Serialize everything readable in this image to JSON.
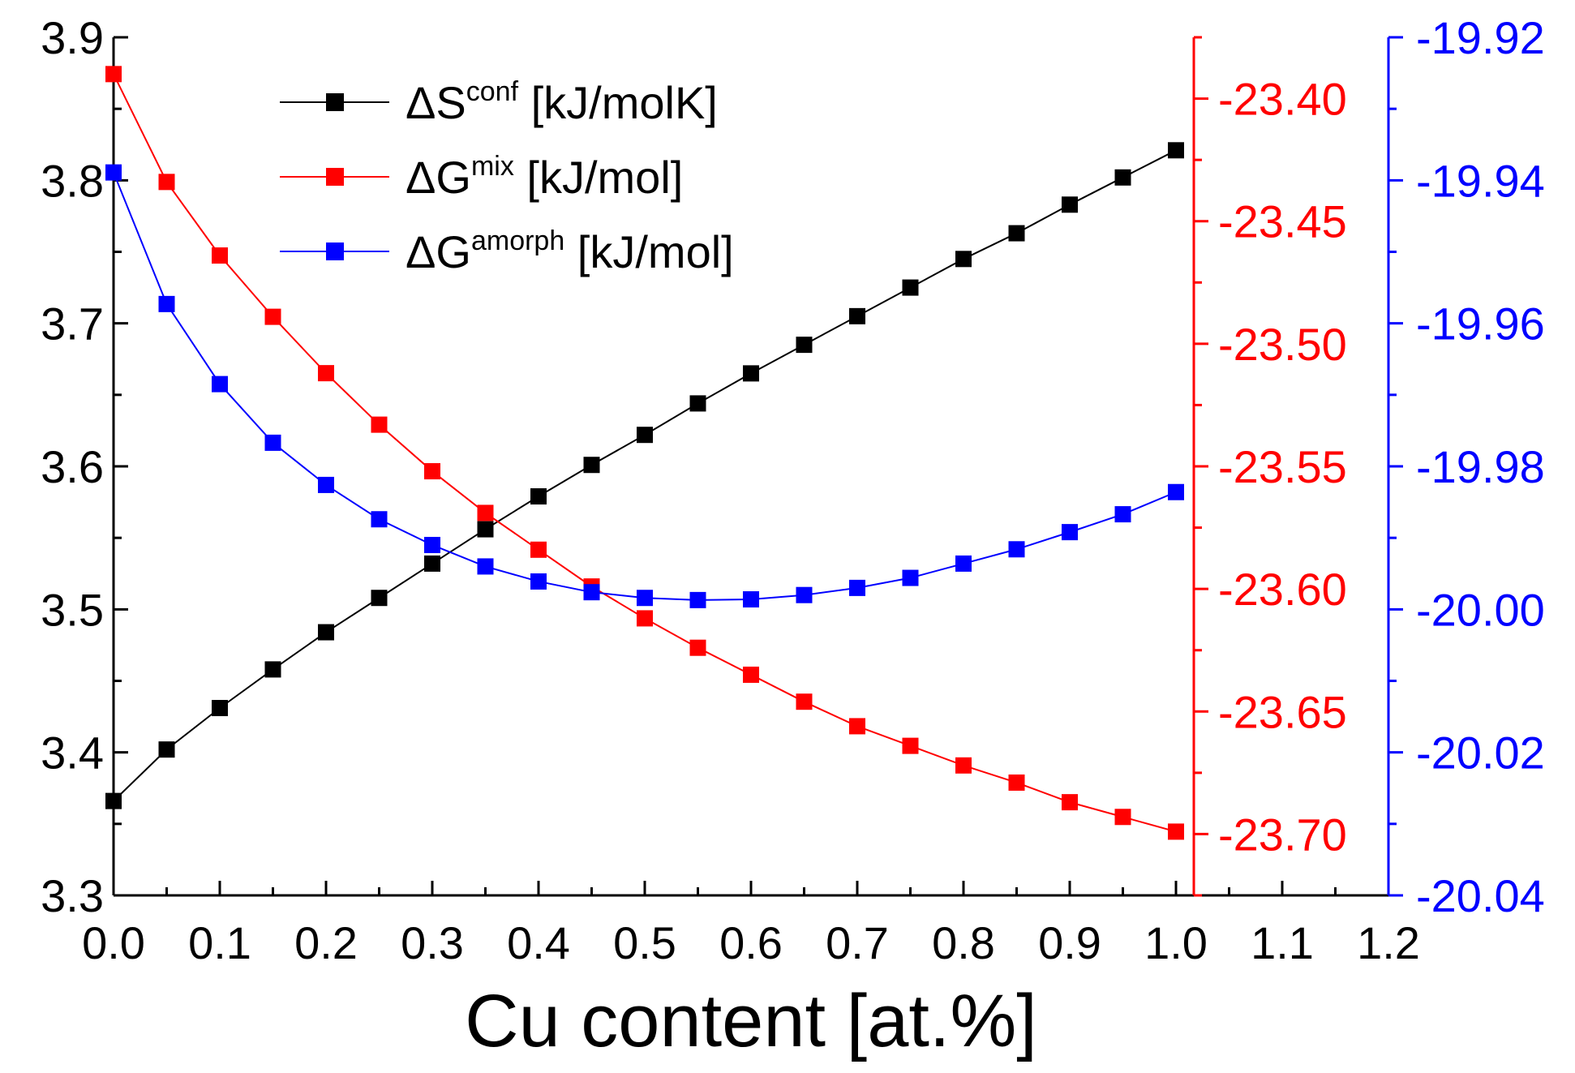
{
  "chart_data": {
    "type": "line",
    "xlabel": "Cu content [at.%]",
    "xlim": [
      0.0,
      1.2
    ],
    "x_ticks": [
      "0.0",
      "0.1",
      "0.2",
      "0.3",
      "0.4",
      "0.5",
      "0.6",
      "0.7",
      "0.8",
      "0.9",
      "1.0",
      "1.1",
      "1.2"
    ],
    "x": [
      0.0,
      0.05,
      0.1,
      0.15,
      0.2,
      0.25,
      0.3,
      0.35,
      0.4,
      0.45,
      0.5,
      0.55,
      0.6,
      0.65,
      0.7,
      0.75,
      0.8,
      0.85,
      0.9,
      0.95,
      1.0
    ],
    "axes": {
      "left": {
        "ylim": [
          3.3,
          3.9
        ],
        "ticks": [
          "3.3",
          "3.4",
          "3.5",
          "3.6",
          "3.7",
          "3.8",
          "3.9"
        ],
        "color": "#000000"
      },
      "right_red": {
        "ylim": [
          -23.725,
          -23.375
        ],
        "ticks": [
          "-23.40",
          "-23.45",
          "-23.50",
          "-23.55",
          "-23.60",
          "-23.65",
          "-23.70"
        ],
        "color": "#ff0000"
      },
      "right_blue": {
        "ylim": [
          -20.04,
          -19.92
        ],
        "ticks": [
          "-19.92",
          "-19.94",
          "-19.96",
          "-19.98",
          "-20.00",
          "-20.02",
          "-20.04"
        ],
        "color": "#0000ff"
      }
    },
    "series": [
      {
        "name": "ΔS^conf [kJ/molK]",
        "legend_main": "ΔS",
        "legend_sup": "conf",
        "legend_unit": " [kJ/molK]",
        "axis": "left",
        "color": "#000000",
        "values": [
          3.366,
          3.402,
          3.431,
          3.458,
          3.484,
          3.508,
          3.532,
          3.556,
          3.579,
          3.601,
          3.622,
          3.644,
          3.665,
          3.685,
          3.705,
          3.725,
          3.745,
          3.763,
          3.783,
          3.802,
          3.821
        ]
      },
      {
        "name": "ΔG^mix [kJ/mol]",
        "legend_main": "ΔG",
        "legend_sup": "mix",
        "legend_unit": " [kJ/mol]",
        "axis": "right_red",
        "color": "#ff0000",
        "values": [
          -23.39,
          -23.434,
          -23.464,
          -23.489,
          -23.512,
          -23.533,
          -23.552,
          -23.569,
          -23.584,
          -23.599,
          -23.612,
          -23.624,
          -23.635,
          -23.646,
          -23.656,
          -23.664,
          -23.672,
          -23.679,
          -23.687,
          -23.693,
          -23.699
        ]
      },
      {
        "name": "ΔG^amorph [kJ/mol]",
        "legend_main": "ΔG",
        "legend_sup": "amorph",
        "legend_unit": " [kJ/mol]",
        "axis": "right_blue",
        "color": "#0000ff",
        "values": [
          -19.9389,
          -19.9573,
          -19.9685,
          -19.9767,
          -19.9826,
          -19.9874,
          -19.991,
          -19.994,
          -19.9961,
          -19.9976,
          -19.9984,
          -19.9987,
          -19.9986,
          -19.998,
          -19.997,
          -19.9956,
          -19.9936,
          -19.9916,
          -19.9892,
          -19.9867,
          -19.9836
        ]
      }
    ]
  }
}
